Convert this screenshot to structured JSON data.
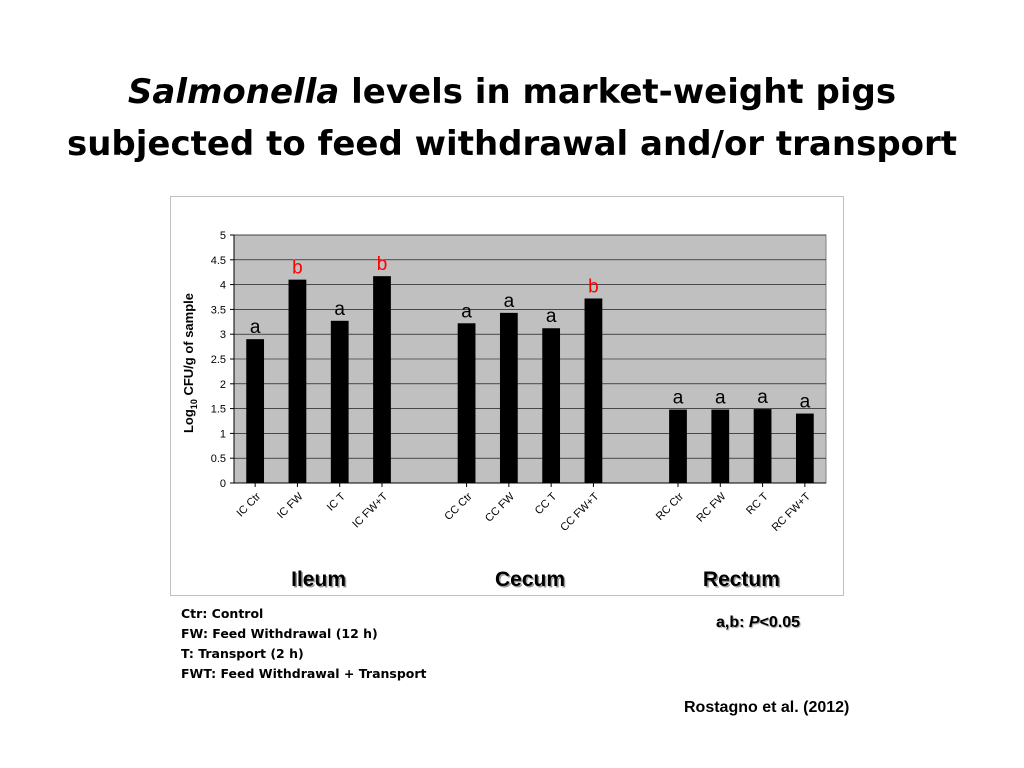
{
  "title": {
    "italic": "Salmonella",
    "line1_rest": " levels in market-weight pigs",
    "line2": "subjected to feed withdrawal and/or transport"
  },
  "chart_data": {
    "type": "bar",
    "ylabel_main": "Log",
    "ylabel_sub": "10",
    "ylabel_rest": " CFU/g of sample",
    "ylim": [
      0,
      5
    ],
    "yticks": [
      "0",
      "0.5",
      "1",
      "1.5",
      "2",
      "2.5",
      "3",
      "3.5",
      "4",
      "4.5",
      "5"
    ],
    "grid": true,
    "plot_background": "#c0c0c0",
    "bar_color": "#000000",
    "groups": [
      {
        "name": "Ileum",
        "categories": [
          "IC Ctr",
          "IC FW",
          "IC T",
          "IC FW+T"
        ],
        "values": [
          2.9,
          4.1,
          3.27,
          4.17
        ],
        "letters": [
          "a",
          "b",
          "a",
          "b"
        ]
      },
      {
        "name": "Cecum",
        "categories": [
          "CC Ctr",
          "CC FW",
          "CC T",
          "CC FW+T"
        ],
        "values": [
          3.22,
          3.43,
          3.12,
          3.72
        ],
        "letters": [
          "a",
          "a",
          "a",
          "b"
        ]
      },
      {
        "name": "Rectum",
        "categories": [
          "RC Ctr",
          "RC FW",
          "RC T",
          "RC FW+T"
        ],
        "values": [
          1.48,
          1.48,
          1.49,
          1.4
        ],
        "letters": [
          "a",
          "a",
          "a",
          "a"
        ]
      }
    ],
    "letter_colors": {
      "a": "#000000",
      "b": "#ff0000"
    }
  },
  "notes": [
    "Ctr: Control",
    "FW: Feed Withdrawal (12 h)",
    "T: Transport (2 h)",
    "FWT: Feed Withdrawal + Transport"
  ],
  "significance": {
    "prefix": "a,b: ",
    "p": "P",
    "suffix": "<0.05"
  },
  "citation": "Rostagno et al. (2012)"
}
